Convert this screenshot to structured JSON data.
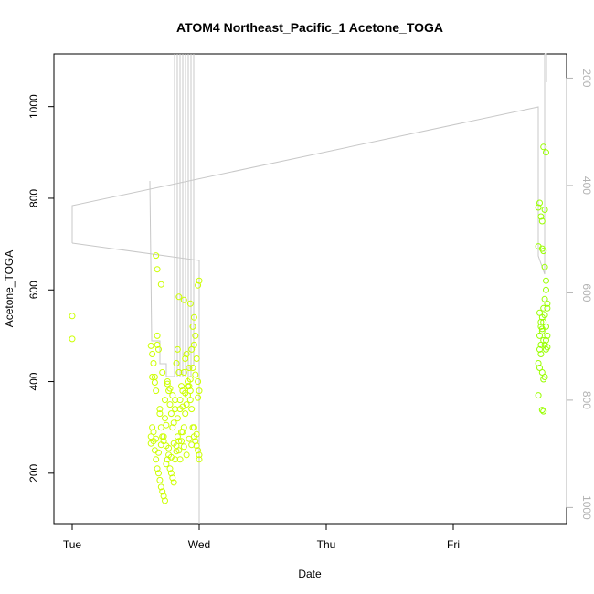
{
  "chart_data": {
    "type": "scatter",
    "title": "ATOM4 Northeast_Pacific_1 Acetone_TOGA",
    "xlabel": "Date",
    "ylabel": "Acetone_TOGA",
    "x_ticks": [
      "Tue",
      "Wed",
      "Thu",
      "Fri"
    ],
    "x_range_days": [
      -0.15,
      3.85
    ],
    "ylim": [
      90,
      1115
    ],
    "y_ticks": [
      200,
      400,
      600,
      800,
      1000
    ],
    "y2_ticks": [
      200,
      400,
      600,
      800,
      1000
    ],
    "y2lim": [
      1030,
      155
    ],
    "grid": false,
    "colors": {
      "points": "#ccff00",
      "points_late": "#99ff00",
      "profile_line": "#c8c8c8",
      "right_axis": "#b3b3b3",
      "frame": "#000000"
    },
    "series": [
      {
        "marker": "open-circle",
        "x": [
          0.0,
          0.0,
          0.62,
          0.62,
          0.63,
          0.63,
          0.64,
          0.64,
          0.65,
          0.65,
          0.66,
          0.66,
          0.67,
          0.67,
          0.68,
          0.68,
          0.69,
          0.69,
          0.7,
          0.7,
          0.71,
          0.71,
          0.72,
          0.72,
          0.73,
          0.73,
          0.74,
          0.74,
          0.75,
          0.75,
          0.76,
          0.76,
          0.77,
          0.77,
          0.78,
          0.78,
          0.79,
          0.79,
          0.8,
          0.8,
          0.81,
          0.81,
          0.82,
          0.82,
          0.83,
          0.83,
          0.84,
          0.84,
          0.85,
          0.85,
          0.86,
          0.86,
          0.87,
          0.87,
          0.88,
          0.88,
          0.89,
          0.89,
          0.9,
          0.9,
          0.91,
          0.91,
          0.92,
          0.92,
          0.93,
          0.93,
          0.94,
          0.94,
          0.95,
          0.95,
          0.96,
          0.96,
          0.97,
          0.97,
          0.98,
          0.98,
          0.99,
          0.99,
          1.0,
          1.0,
          0.62,
          0.64,
          0.66,
          0.68,
          0.7,
          0.72,
          0.74,
          0.76,
          0.78,
          0.8,
          0.82,
          0.84,
          0.86,
          0.88,
          0.9,
          0.92,
          0.94,
          0.96,
          0.98,
          1.0,
          0.63,
          0.65,
          0.67,
          0.69,
          0.71,
          0.73,
          0.75,
          0.77,
          0.79,
          0.81,
          0.83,
          0.85,
          0.87,
          0.89,
          0.91,
          0.93,
          0.95,
          0.97,
          0.99,
          0.66,
          0.67,
          0.7,
          0.84,
          0.88,
          0.93,
          0.96,
          0.99,
          1.0
        ],
        "y": [
          543,
          493,
          478,
          280,
          460,
          300,
          440,
          270,
          410,
          250,
          380,
          230,
          500,
          210,
          470,
          200,
          330,
          185,
          300,
          170,
          280,
          160,
          270,
          150,
          320,
          140,
          260,
          220,
          400,
          230,
          380,
          240,
          350,
          210,
          330,
          200,
          300,
          190,
          310,
          180,
          360,
          230,
          440,
          260,
          470,
          280,
          420,
          250,
          340,
          230,
          390,
          270,
          380,
          290,
          420,
          300,
          450,
          330,
          460,
          350,
          400,
          370,
          430,
          390,
          380,
          360,
          470,
          340,
          520,
          300,
          480,
          280,
          500,
          270,
          450,
          260,
          400,
          250,
          380,
          240,
          265,
          290,
          275,
          245,
          262,
          280,
          305,
          255,
          235,
          265,
          248,
          270,
          290,
          258,
          240,
          275,
          262,
          300,
          285,
          230,
          410,
          398,
          480,
          340,
          420,
          360,
          395,
          385,
          370,
          340,
          320,
          360,
          345,
          375,
          390,
          405,
          430,
          415,
          365,
          675,
          645,
          612,
          585,
          578,
          570,
          540,
          610,
          620
        ]
      },
      {
        "marker": "open-circle",
        "x": [
          3.67,
          3.67,
          3.68,
          3.68,
          3.69,
          3.69,
          3.7,
          3.7,
          3.71,
          3.71,
          3.72,
          3.72,
          3.73,
          3.73,
          3.74,
          3.74,
          3.68,
          3.69,
          3.7,
          3.71,
          3.72,
          3.73,
          3.74,
          3.67,
          3.68,
          3.69,
          3.7,
          3.71,
          3.72,
          3.73,
          3.68,
          3.69,
          3.7,
          3.71,
          3.72,
          3.73,
          3.74,
          3.67,
          3.7,
          3.72,
          3.71,
          3.73,
          3.7,
          3.71
        ],
        "y": [
          780,
          370,
          790,
          470,
          760,
          520,
          690,
          540,
          685,
          560,
          650,
          580,
          620,
          600,
          570,
          560,
          550,
          530,
          510,
          490,
          480,
          470,
          500,
          440,
          430,
          460,
          420,
          405,
          410,
          520,
          500,
          480,
          515,
          530,
          545,
          490,
          475,
          695,
          750,
          775,
          912,
          900,
          338,
          335
        ]
      }
    ],
    "profile_line": {
      "note_y_axis": "right",
      "x": [
        0.0,
        0.0,
        1.0,
        1.0,
        0.62,
        0.62,
        0.74,
        0.74
      ],
      "y": [
        435,
        505,
        525,
        200,
        200,
        300,
        300,
        455
      ]
    }
  }
}
